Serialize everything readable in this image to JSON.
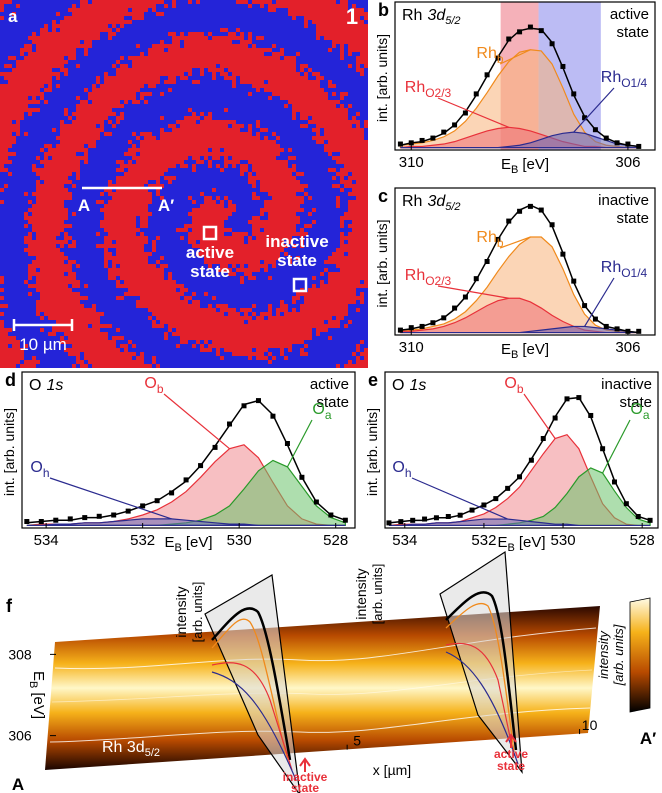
{
  "panel_a": {
    "label": "a",
    "number": "1",
    "line_ends": [
      "A",
      "A′"
    ],
    "states": [
      [
        "active",
        "state"
      ],
      [
        "inactive",
        "state"
      ]
    ],
    "scale_bar": "10 µm"
  },
  "chart_data": [
    {
      "type": "line",
      "panel": "b",
      "title": "Rh",
      "title_italic": "3d",
      "title_sub": "5/2",
      "state": [
        "active",
        "state"
      ],
      "ylabel": "int. [arb. units]",
      "xlabel": "E",
      "xlabel_sub": "B",
      "xlabel_unit": "[eV]",
      "xlim": [
        310.3,
        305.5
      ],
      "ylim": [
        -0.02,
        1.22
      ],
      "xticks": [
        310,
        306
      ],
      "bands": [
        {
          "from": 308.35,
          "to": 307.65,
          "color": "#f3a3ad"
        },
        {
          "from": 307.65,
          "to": 306.5,
          "color": "#b0b0f2"
        }
      ],
      "x": [
        310.2,
        310.0,
        309.8,
        309.6,
        309.4,
        309.2,
        309.0,
        308.8,
        308.6,
        308.4,
        308.2,
        308.0,
        307.8,
        307.6,
        307.4,
        307.2,
        307.0,
        306.8,
        306.6,
        306.4,
        306.2,
        306.0,
        305.8
      ],
      "points": {
        "color": "#000000",
        "values": [
          0.03,
          0.04,
          0.06,
          0.08,
          0.13,
          0.19,
          0.29,
          0.45,
          0.61,
          0.75,
          0.91,
          0.97,
          1.01,
          0.98,
          0.87,
          0.68,
          0.45,
          0.25,
          0.15,
          0.08,
          0.04,
          0.03,
          0.01
        ]
      },
      "fit": {
        "color": "#000000",
        "values": [
          0.02,
          0.04,
          0.05,
          0.08,
          0.12,
          0.19,
          0.3,
          0.44,
          0.6,
          0.76,
          0.9,
          0.98,
          1.0,
          0.99,
          0.88,
          0.67,
          0.44,
          0.26,
          0.15,
          0.08,
          0.04,
          0.02,
          0.01
        ]
      },
      "components": [
        {
          "name": "Rh",
          "name_sub": "b",
          "color": "#f08a1c",
          "fill": "#f7b37a",
          "values": [
            0.02,
            0.03,
            0.04,
            0.06,
            0.09,
            0.14,
            0.22,
            0.33,
            0.46,
            0.6,
            0.72,
            0.8,
            0.82,
            0.81,
            0.7,
            0.5,
            0.28,
            0.13,
            0.05,
            0.02,
            0.01,
            0,
            0
          ]
        },
        {
          "name": "Rh",
          "name_sub": "O2/3",
          "color": "#e8313a",
          "fill": "#ee7077",
          "values": [
            0,
            0.01,
            0.01,
            0.02,
            0.03,
            0.05,
            0.08,
            0.11,
            0.14,
            0.16,
            0.17,
            0.16,
            0.14,
            0.11,
            0.08,
            0.05,
            0.03,
            0.01,
            0.01,
            0,
            0,
            0,
            0
          ]
        },
        {
          "name": "Rh",
          "name_sub": "O1/4",
          "color": "#2b2b8f",
          "fill": "#6a6ab8",
          "values": [
            0,
            0,
            0,
            0,
            0,
            0,
            0,
            0,
            0,
            0,
            0.01,
            0.02,
            0.04,
            0.07,
            0.1,
            0.12,
            0.13,
            0.12,
            0.09,
            0.06,
            0.03,
            0.02,
            0.01
          ]
        }
      ]
    },
    {
      "type": "line",
      "panel": "c",
      "title": "Rh",
      "title_italic": "3d",
      "title_sub": "5/2",
      "state": [
        "inactive",
        "state"
      ],
      "ylabel": "int. [arb. units]",
      "xlabel": "E",
      "xlabel_sub": "B",
      "xlabel_unit": "[eV]",
      "xlim": [
        310.3,
        305.5
      ],
      "ylim": [
        -0.02,
        1.18
      ],
      "xticks": [
        310,
        306
      ],
      "x": [
        310.2,
        310.0,
        309.8,
        309.6,
        309.4,
        309.2,
        309.0,
        308.8,
        308.6,
        308.4,
        308.2,
        308.0,
        307.8,
        307.6,
        307.4,
        307.2,
        307.0,
        306.8,
        306.6,
        306.4,
        306.2,
        306.0,
        305.8
      ],
      "points": {
        "color": "#000000",
        "values": [
          0.02,
          0.04,
          0.05,
          0.08,
          0.12,
          0.2,
          0.29,
          0.44,
          0.58,
          0.76,
          0.91,
          0.99,
          1.03,
          1.0,
          0.88,
          0.64,
          0.42,
          0.22,
          0.11,
          0.05,
          0.03,
          0.01,
          0.01
        ]
      },
      "fit": {
        "color": "#000000",
        "values": [
          0.02,
          0.03,
          0.05,
          0.08,
          0.12,
          0.19,
          0.29,
          0.43,
          0.59,
          0.76,
          0.9,
          1.0,
          1.04,
          1.0,
          0.87,
          0.65,
          0.41,
          0.22,
          0.11,
          0.05,
          0.03,
          0.01,
          0
        ]
      },
      "components": [
        {
          "name": "Rh",
          "name_sub": "b",
          "color": "#f08a1c",
          "fill": "#f7b37a",
          "values": [
            0.01,
            0.02,
            0.03,
            0.05,
            0.07,
            0.11,
            0.17,
            0.26,
            0.37,
            0.5,
            0.62,
            0.72,
            0.78,
            0.78,
            0.7,
            0.52,
            0.31,
            0.15,
            0.06,
            0.02,
            0.01,
            0,
            0
          ]
        },
        {
          "name": "Rh",
          "name_sub": "O2/3",
          "color": "#e8313a",
          "fill": "#ee7077",
          "values": [
            0.01,
            0.01,
            0.02,
            0.03,
            0.05,
            0.08,
            0.12,
            0.17,
            0.22,
            0.26,
            0.28,
            0.28,
            0.25,
            0.2,
            0.14,
            0.09,
            0.05,
            0.02,
            0.01,
            0,
            0,
            0,
            0
          ]
        },
        {
          "name": "Rh",
          "name_sub": "O1/4",
          "color": "#2b2b8f",
          "fill": "#6a6ab8",
          "values": [
            0,
            0,
            0,
            0,
            0,
            0,
            0,
            0,
            0,
            0,
            0,
            0,
            0.01,
            0.02,
            0.03,
            0.04,
            0.05,
            0.05,
            0.04,
            0.03,
            0.02,
            0.01,
            0
          ]
        }
      ]
    },
    {
      "type": "line",
      "panel": "d",
      "title": "O",
      "title_italic": "1s",
      "state": [
        "active",
        "state"
      ],
      "ylabel": "int. [arb. units]",
      "xlabel": "E",
      "xlabel_sub": "B",
      "xlabel_unit": "[eV]",
      "xlim": [
        534.5,
        527.6
      ],
      "ylim": [
        -0.02,
        1.18
      ],
      "xticks": [
        534,
        532,
        530,
        528
      ],
      "x": [
        534.4,
        534.1,
        533.8,
        533.5,
        533.2,
        532.9,
        532.6,
        532.3,
        532.0,
        531.7,
        531.4,
        531.1,
        530.8,
        530.5,
        530.2,
        529.9,
        529.6,
        529.3,
        529.0,
        528.7,
        528.4,
        528.1,
        527.8
      ],
      "points": {
        "color": "#000000",
        "values": [
          0.03,
          0.03,
          0.04,
          0.05,
          0.06,
          0.07,
          0.08,
          0.11,
          0.15,
          0.19,
          0.25,
          0.35,
          0.46,
          0.6,
          0.78,
          0.92,
          0.96,
          0.84,
          0.63,
          0.37,
          0.18,
          0.08,
          0.04
        ]
      },
      "fit": {
        "color": "#000000",
        "values": [
          0.02,
          0.03,
          0.04,
          0.04,
          0.06,
          0.06,
          0.08,
          0.11,
          0.15,
          0.19,
          0.26,
          0.34,
          0.46,
          0.61,
          0.77,
          0.93,
          0.96,
          0.85,
          0.62,
          0.37,
          0.18,
          0.08,
          0.04
        ]
      },
      "components": [
        {
          "name": "O",
          "name_sub": "b",
          "color": "#e8313a",
          "fill": "#f08a90",
          "values": [
            0,
            0.01,
            0.01,
            0.01,
            0.02,
            0.02,
            0.03,
            0.05,
            0.08,
            0.12,
            0.18,
            0.26,
            0.37,
            0.49,
            0.59,
            0.62,
            0.52,
            0.33,
            0.15,
            0.05,
            0.01,
            0,
            0
          ]
        },
        {
          "name": "O",
          "name_sub": "a",
          "color": "#2a9a2a",
          "fill": "#6cc26c",
          "values": [
            0,
            0,
            0,
            0,
            0,
            0,
            0,
            0,
            0,
            0,
            0.01,
            0.02,
            0.04,
            0.08,
            0.15,
            0.28,
            0.42,
            0.5,
            0.45,
            0.3,
            0.15,
            0.06,
            0.02
          ]
        },
        {
          "name": "O",
          "name_sub": "h",
          "color": "#2b2b8f",
          "fill": "#6a6ab8",
          "values": [
            0,
            0,
            0.01,
            0.01,
            0.02,
            0.02,
            0.03,
            0.04,
            0.05,
            0.05,
            0.05,
            0.04,
            0.03,
            0.02,
            0.01,
            0.01,
            0,
            0,
            0,
            0,
            0,
            0,
            0
          ]
        }
      ]
    },
    {
      "type": "line",
      "panel": "e",
      "title": "O",
      "title_italic": "1s",
      "state": [
        "inactive",
        "state"
      ],
      "ylabel": "int. [arb. units]",
      "xlabel": "E",
      "xlabel_sub": "B",
      "xlabel_unit": "[eV]",
      "xlim": [
        534.5,
        527.6
      ],
      "ylim": [
        -0.02,
        1.2
      ],
      "xticks": [
        534,
        532,
        530,
        528
      ],
      "x": [
        534.4,
        534.1,
        533.8,
        533.5,
        533.2,
        532.9,
        532.6,
        532.3,
        532.0,
        531.7,
        531.4,
        531.1,
        530.8,
        530.5,
        530.2,
        529.9,
        529.6,
        529.3,
        529.0,
        528.7,
        528.4,
        528.1,
        527.8
      ],
      "points": {
        "color": "#000000",
        "values": [
          0.02,
          0.03,
          0.04,
          0.05,
          0.06,
          0.07,
          0.08,
          0.12,
          0.16,
          0.21,
          0.29,
          0.38,
          0.51,
          0.68,
          0.84,
          0.99,
          1.0,
          0.86,
          0.6,
          0.34,
          0.17,
          0.07,
          0.04
        ]
      },
      "fit": {
        "color": "#000000",
        "values": [
          0.02,
          0.03,
          0.04,
          0.04,
          0.06,
          0.06,
          0.08,
          0.12,
          0.16,
          0.21,
          0.29,
          0.38,
          0.52,
          0.67,
          0.85,
          0.99,
          1.0,
          0.85,
          0.6,
          0.35,
          0.17,
          0.07,
          0.04
        ]
      },
      "components": [
        {
          "name": "O",
          "name_sub": "b",
          "color": "#e8313a",
          "fill": "#f08a90",
          "values": [
            0,
            0.01,
            0.01,
            0.01,
            0.02,
            0.02,
            0.03,
            0.06,
            0.09,
            0.14,
            0.21,
            0.3,
            0.43,
            0.56,
            0.68,
            0.71,
            0.6,
            0.38,
            0.17,
            0.06,
            0.01,
            0,
            0
          ]
        },
        {
          "name": "O",
          "name_sub": "a",
          "color": "#2a9a2a",
          "fill": "#6cc26c",
          "values": [
            0,
            0,
            0,
            0,
            0,
            0,
            0,
            0,
            0,
            0,
            0.01,
            0.02,
            0.04,
            0.07,
            0.14,
            0.25,
            0.38,
            0.45,
            0.41,
            0.27,
            0.14,
            0.05,
            0.02
          ]
        },
        {
          "name": "O",
          "name_sub": "h",
          "color": "#2b2b8f",
          "fill": "#6a6ab8",
          "values": [
            0,
            0,
            0.01,
            0.01,
            0.02,
            0.02,
            0.03,
            0.04,
            0.05,
            0.05,
            0.05,
            0.04,
            0.03,
            0.02,
            0.01,
            0.01,
            0,
            0,
            0,
            0,
            0,
            0,
            0
          ]
        }
      ]
    }
  ],
  "panel_f": {
    "label": "f",
    "ylabel": "E",
    "ylabel_sub": "B",
    "ylabel_unit": "[eV]",
    "ylim": [
      308.6,
      305.4
    ],
    "yticks": [
      308,
      306
    ],
    "xlim": [
      -1.5,
      11.3
    ],
    "xticks": [
      5,
      10
    ],
    "xlabel": "x [µm]",
    "title": "Rh 3d",
    "title_sub": "5/2",
    "section_label": [
      "intensity",
      "[arb. units]"
    ],
    "colorbar_label": [
      "intensity",
      "[arb. units]"
    ],
    "states": [
      [
        "inactive",
        "state"
      ],
      [
        "active",
        "state"
      ]
    ],
    "ends": [
      "A",
      "A′"
    ]
  }
}
